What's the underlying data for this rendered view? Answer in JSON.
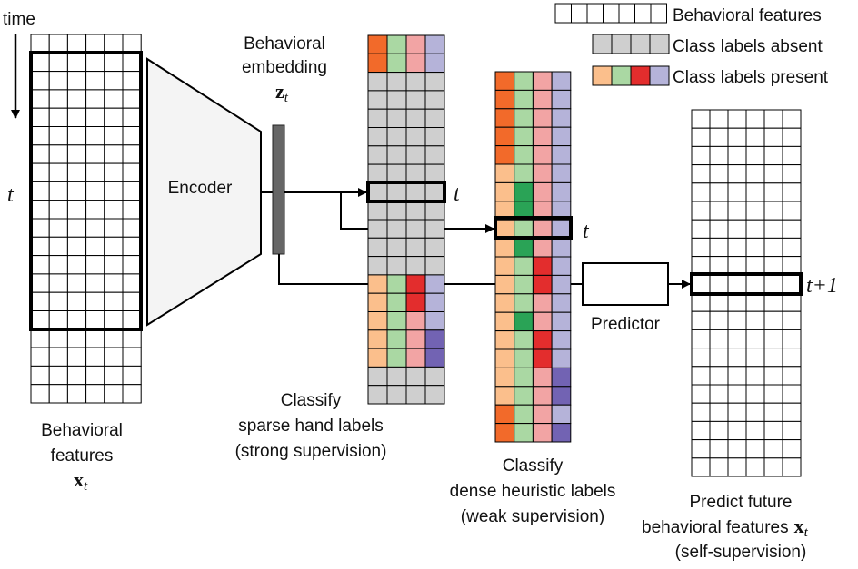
{
  "legend": {
    "behavioral_features": "Behavioral features",
    "class_labels_absent": "Class labels absent",
    "class_labels_present": "Class labels present"
  },
  "input": {
    "time_label": "time",
    "t_label": "t",
    "caption_line1": "Behavioral",
    "caption_line2": "features",
    "math_symbol": "x",
    "math_sub": "t"
  },
  "encoder": {
    "label": "Encoder"
  },
  "embedding": {
    "line1": "Behavioral",
    "line2": "embedding",
    "math_symbol": "z",
    "math_sub": "t"
  },
  "sparse": {
    "t_label": "t",
    "caption_line1": "Classify",
    "caption_line2": "sparse hand labels",
    "caption_line3": "(strong supervision)"
  },
  "dense": {
    "t_label": "t",
    "caption_line1": "Classify",
    "caption_line2": "dense heuristic labels",
    "caption_line3": "(weak supervision)"
  },
  "predictor": {
    "label": "Predictor"
  },
  "future": {
    "t_label": "t+1",
    "caption_line1": "Predict future",
    "caption_line2": "behavioral features",
    "math_symbol": "x",
    "math_sub": "t",
    "caption_line3": "(self-supervision)"
  },
  "colors": {
    "orange": "#f26a2a",
    "light_orange": "#fbbf8c",
    "light_green": "#aad8a3",
    "dark_green": "#2aa356",
    "pink": "#f2a4a4",
    "red": "#e32d2d",
    "lavender": "#b5b3d9",
    "purple": "#7263b3",
    "gray": "#cfcfcf"
  }
}
